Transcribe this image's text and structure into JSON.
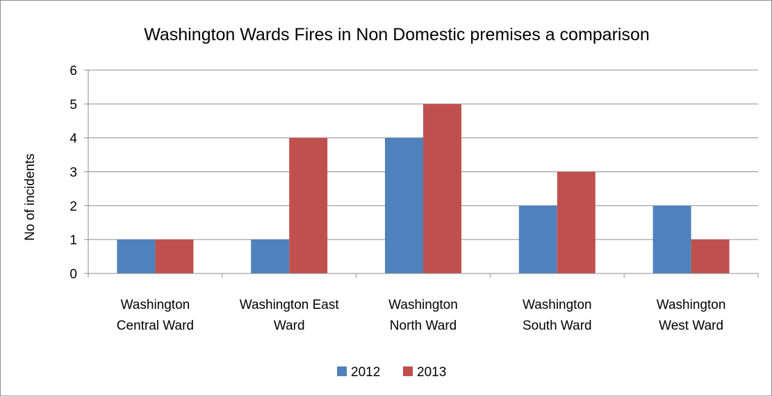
{
  "chart_data": {
    "type": "bar",
    "title": "Washington Wards Fires in Non Domestic premises a comparison",
    "ylabel": "No of incidents",
    "xlabel": "",
    "ylim": [
      0,
      6
    ],
    "yticks": [
      "0",
      "1",
      "2",
      "3",
      "4",
      "5",
      "6"
    ],
    "categories": [
      [
        "Washington",
        "Central Ward"
      ],
      [
        "Washington East",
        "Ward"
      ],
      [
        "Washington",
        "North Ward"
      ],
      [
        "Washington",
        "South Ward"
      ],
      [
        "Washington",
        "West Ward"
      ]
    ],
    "series": [
      {
        "name": "2012",
        "color": "#4f81bd",
        "values": [
          1,
          1,
          4,
          2,
          2
        ]
      },
      {
        "name": "2013",
        "color": "#c0504d",
        "values": [
          1,
          4,
          5,
          3,
          1
        ]
      }
    ],
    "grid": true,
    "legend_position": "bottom"
  }
}
